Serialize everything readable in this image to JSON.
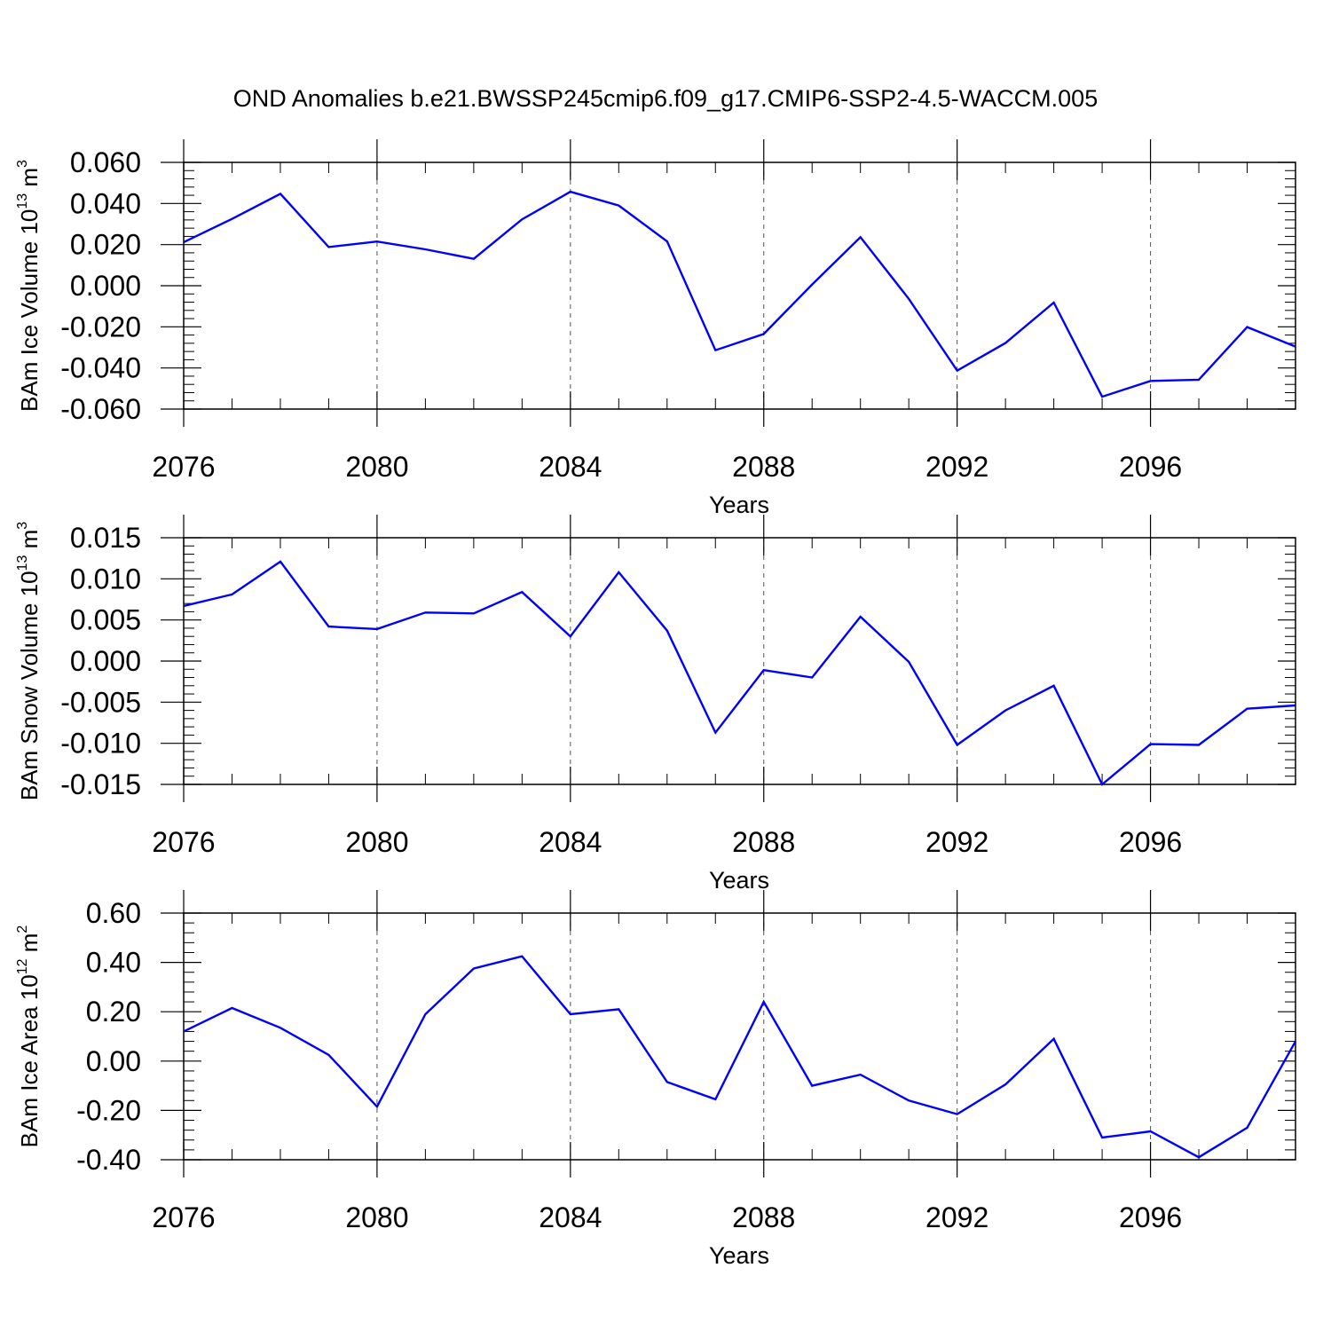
{
  "title": "OND Anomalies b.e21.BWSSP245cmip6.f09_g17.CMIP6-SSP2-4.5-WACCM.005",
  "colors": {
    "line": "#0000ff",
    "axis": "#000000",
    "grid": "#555555"
  },
  "chart_data": [
    {
      "type": "line",
      "ylabel": {
        "text": "BAm Ice Volume 10",
        "sup1": "13",
        "unit": " m",
        "sup2": "3"
      },
      "xlabel": "Years",
      "xlim": [
        2076,
        2099
      ],
      "ylim": [
        -0.06,
        0.06
      ],
      "xticks": [
        2076,
        2080,
        2084,
        2088,
        2092,
        2096
      ],
      "xtick_labels": [
        "2076",
        "2080",
        "2084",
        "2088",
        "2092",
        "2096"
      ],
      "yticks": [
        -0.06,
        -0.04,
        -0.02,
        0.0,
        0.02,
        0.04,
        0.06
      ],
      "ytick_labels": [
        "-0.060",
        "-0.040",
        "-0.020",
        "0.000",
        "0.020",
        "0.040",
        "0.060"
      ],
      "grid": "dashed vertical at major x ticks",
      "x": [
        2076,
        2077,
        2078,
        2079,
        2080,
        2081,
        2082,
        2083,
        2084,
        2085,
        2086,
        2087,
        2088,
        2089,
        2090,
        2091,
        2092,
        2093,
        2094,
        2095,
        2096,
        2097,
        2098,
        2099
      ],
      "y": [
        0.0212,
        0.0325,
        0.0447,
        0.0188,
        0.0215,
        0.0177,
        0.0131,
        0.0323,
        0.0457,
        0.039,
        0.0216,
        -0.0314,
        -0.0235,
        0.0006,
        0.0236,
        -0.0064,
        -0.0413,
        -0.0279,
        -0.0082,
        -0.054,
        -0.0463,
        -0.0457,
        -0.0201,
        -0.0296
      ]
    },
    {
      "type": "line",
      "ylabel": {
        "text": "BAm Snow Volume 10",
        "sup1": "13",
        "unit": " m",
        "sup2": "3"
      },
      "xlabel": "Years",
      "xlim": [
        2076,
        2099
      ],
      "ylim": [
        -0.015,
        0.015
      ],
      "xticks": [
        2076,
        2080,
        2084,
        2088,
        2092,
        2096
      ],
      "xtick_labels": [
        "2076",
        "2080",
        "2084",
        "2088",
        "2092",
        "2096"
      ],
      "yticks": [
        -0.015,
        -0.01,
        -0.005,
        0.0,
        0.005,
        0.01,
        0.015
      ],
      "ytick_labels": [
        "-0.015",
        "-0.010",
        "-0.005",
        "0.000",
        "0.005",
        "0.010",
        "0.015"
      ],
      "grid": "dashed vertical at major x ticks",
      "x": [
        2076,
        2077,
        2078,
        2079,
        2080,
        2081,
        2082,
        2083,
        2084,
        2085,
        2086,
        2087,
        2088,
        2089,
        2090,
        2091,
        2092,
        2093,
        2094,
        2095,
        2096,
        2097,
        2098,
        2099
      ],
      "y": [
        0.0067,
        0.0081,
        0.0121,
        0.0042,
        0.0039,
        0.0059,
        0.0058,
        0.0084,
        0.003,
        0.0108,
        0.0037,
        -0.0087,
        -0.0011,
        -0.002,
        0.0054,
        -0.0001,
        -0.0102,
        -0.006,
        -0.003,
        -0.015,
        -0.0101,
        -0.0102,
        -0.0058,
        -0.0054
      ]
    },
    {
      "type": "line",
      "ylabel": {
        "text": "BAm Ice Area 10",
        "sup1": "12",
        "unit": " m",
        "sup2": "2"
      },
      "xlabel": "Years",
      "xlim": [
        2076,
        2099
      ],
      "ylim": [
        -0.4,
        0.6
      ],
      "xticks": [
        2076,
        2080,
        2084,
        2088,
        2092,
        2096
      ],
      "xtick_labels": [
        "2076",
        "2080",
        "2084",
        "2088",
        "2092",
        "2096"
      ],
      "yticks": [
        -0.4,
        -0.2,
        0.0,
        0.2,
        0.4,
        0.6
      ],
      "ytick_labels": [
        "-0.40",
        "-0.20",
        "0.00",
        "0.20",
        "0.40",
        "0.60"
      ],
      "grid": "dashed vertical at major x ticks",
      "x": [
        2076,
        2077,
        2078,
        2079,
        2080,
        2081,
        2082,
        2083,
        2084,
        2085,
        2086,
        2087,
        2088,
        2089,
        2090,
        2091,
        2092,
        2093,
        2094,
        2095,
        2096,
        2097,
        2098,
        2099
      ],
      "y": [
        0.12,
        0.215,
        0.135,
        0.025,
        -0.185,
        0.19,
        0.375,
        0.425,
        0.19,
        0.21,
        -0.085,
        -0.155,
        0.24,
        -0.1,
        -0.055,
        -0.16,
        -0.215,
        -0.095,
        0.09,
        -0.31,
        -0.285,
        -0.39,
        -0.27,
        0.08
      ]
    }
  ]
}
